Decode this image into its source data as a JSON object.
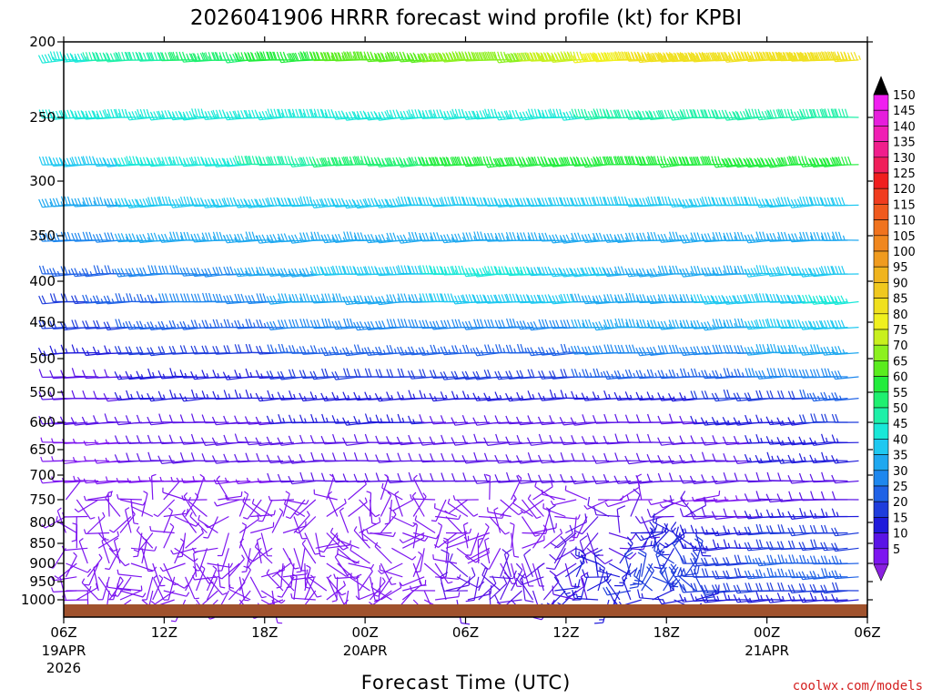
{
  "chart_data": {
    "type": "wind-barb-time-height",
    "title": "2026041906 HRRR forecast wind profile (kt) for KPBI",
    "xlabel": "Forecast Time (UTC)",
    "credit": "coolwx.com/models",
    "y_axis": {
      "variable": "pressure",
      "ticks": [
        200,
        250,
        300,
        350,
        400,
        450,
        500,
        550,
        600,
        650,
        700,
        750,
        800,
        850,
        900,
        950,
        1000
      ],
      "range": [
        200,
        1010
      ],
      "inverted": true
    },
    "x_axis": {
      "range_hours": [
        0,
        48
      ],
      "ticks": [
        {
          "hour": 0,
          "label": "06Z",
          "sub1": "19APR",
          "sub2": "2026"
        },
        {
          "hour": 6,
          "label": "12Z",
          "sub1": "",
          "sub2": ""
        },
        {
          "hour": 12,
          "label": "18Z",
          "sub1": "",
          "sub2": ""
        },
        {
          "hour": 18,
          "label": "00Z",
          "sub1": "20APR",
          "sub2": ""
        },
        {
          "hour": 24,
          "label": "06Z",
          "sub1": "",
          "sub2": ""
        },
        {
          "hour": 30,
          "label": "12Z",
          "sub1": "",
          "sub2": ""
        },
        {
          "hour": 36,
          "label": "18Z",
          "sub1": "",
          "sub2": ""
        },
        {
          "hour": 42,
          "label": "00Z",
          "sub1": "21APR",
          "sub2": ""
        },
        {
          "hour": 48,
          "label": "06Z",
          "sub1": "",
          "sub2": ""
        }
      ]
    },
    "colorbar": {
      "levels": [
        5,
        10,
        15,
        20,
        25,
        30,
        35,
        40,
        45,
        50,
        55,
        60,
        65,
        70,
        75,
        80,
        85,
        90,
        95,
        100,
        105,
        110,
        115,
        120,
        125,
        130,
        135,
        140,
        145,
        150
      ],
      "colors": [
        "#7d16f0",
        "#5a14e6",
        "#1f1adb",
        "#1f3ddc",
        "#1f62e6",
        "#1e87ee",
        "#1ea8f0",
        "#1ec8f0",
        "#19e8d8",
        "#1ef0a8",
        "#1ef070",
        "#22ec3c",
        "#5aec1e",
        "#8cf01e",
        "#c8f01e",
        "#f0f01e",
        "#f0e01e",
        "#f0c81e",
        "#f0b41e",
        "#f09b1e",
        "#f0871e",
        "#f0731e",
        "#f05a1e",
        "#f03c1e",
        "#f01e1e",
        "#f01e5a",
        "#f01e8c",
        "#f01eb4",
        "#e61edc",
        "#f01ef0"
      ],
      "over_color": "#000000",
      "under_color": "#8a20e0"
    },
    "ground_color": "#a0522d",
    "levels_hpa": [
      212,
      250,
      287,
      322,
      355,
      392,
      425,
      457,
      492,
      527,
      560,
      600,
      637,
      672,
      712,
      750,
      787,
      825,
      862,
      900,
      937,
      975,
      1000
    ],
    "speeds_kt": {
      "212": [
        45,
        55,
        65,
        70,
        85,
        85
      ],
      "250": [
        45,
        45,
        45,
        45,
        50,
        50
      ],
      "287": [
        40,
        45,
        55,
        60,
        60,
        60
      ],
      "322": [
        35,
        40,
        40,
        40,
        40,
        40
      ],
      "355": [
        30,
        35,
        35,
        35,
        35,
        35
      ],
      "392": [
        25,
        30,
        40,
        45,
        35,
        40
      ],
      "425": [
        20,
        30,
        35,
        40,
        35,
        45
      ],
      "457": [
        20,
        25,
        30,
        30,
        35,
        40
      ],
      "492": [
        15,
        20,
        25,
        25,
        30,
        35
      ],
      "527": [
        10,
        15,
        20,
        20,
        25,
        30
      ],
      "560": [
        10,
        15,
        15,
        15,
        15,
        25
      ],
      "600": [
        10,
        10,
        15,
        10,
        10,
        20
      ],
      "637": [
        5,
        10,
        10,
        10,
        10,
        15
      ],
      "672": [
        5,
        10,
        10,
        10,
        10,
        15
      ],
      "712": [
        5,
        5,
        10,
        10,
        10,
        10
      ],
      "750": [
        5,
        5,
        5,
        5,
        5,
        10
      ],
      "787": [
        5,
        5,
        5,
        5,
        10,
        15
      ],
      "825": [
        5,
        5,
        5,
        5,
        15,
        20
      ],
      "862": [
        5,
        5,
        5,
        5,
        15,
        20
      ],
      "900": [
        5,
        5,
        5,
        5,
        20,
        25
      ],
      "937": [
        5,
        5,
        5,
        10,
        20,
        25
      ],
      "975": [
        5,
        5,
        5,
        10,
        20,
        20
      ],
      "1000": [
        5,
        5,
        5,
        10,
        15,
        15
      ]
    },
    "speed_hours": [
      0,
      9,
      18,
      27,
      36,
      48
    ]
  }
}
